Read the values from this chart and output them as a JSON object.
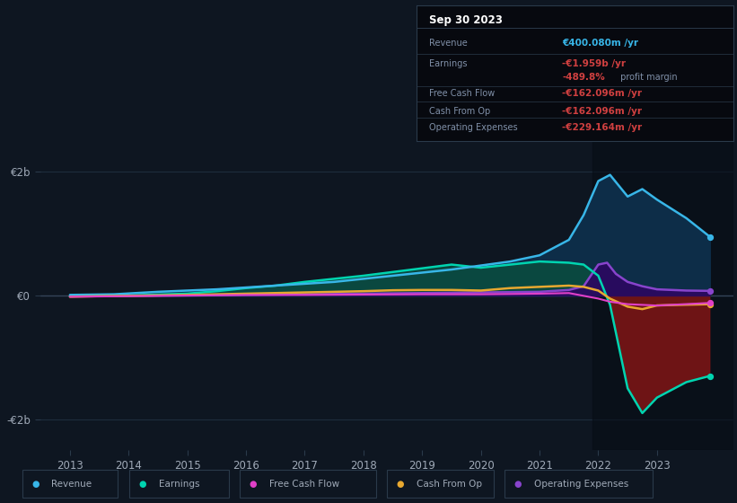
{
  "bg_color": "#0e1621",
  "plot_bg_color": "#0e1621",
  "grid_color": "#1e2d3d",
  "text_color": "#a0aab8",
  "ylim": [
    -2500000000.0,
    2500000000.0
  ],
  "yticks": [
    -2000000000.0,
    0,
    2000000000.0
  ],
  "ytick_labels": [
    "-€2b",
    "€0",
    "€2b"
  ],
  "xticks": [
    2013,
    2014,
    2015,
    2016,
    2017,
    2018,
    2019,
    2020,
    2021,
    2022,
    2023
  ],
  "legend_items": [
    {
      "label": "Revenue",
      "color": "#38b6e8"
    },
    {
      "label": "Earnings",
      "color": "#00d4b0"
    },
    {
      "label": "Free Cash Flow",
      "color": "#e040c8"
    },
    {
      "label": "Cash From Op",
      "color": "#e8a830"
    },
    {
      "label": "Operating Expenses",
      "color": "#8844cc"
    }
  ],
  "revenue_years": [
    2013,
    2013.75,
    2014.5,
    2015.5,
    2016.5,
    2017.5,
    2018.5,
    2019.5,
    2020.5,
    2021.0,
    2021.5,
    2021.75,
    2022.0,
    2022.2,
    2022.5,
    2022.75,
    2023.0,
    2023.5,
    2023.9
  ],
  "revenue_values": [
    0.01,
    0.02,
    0.06,
    0.1,
    0.16,
    0.22,
    0.32,
    0.42,
    0.55,
    0.65,
    0.9,
    1.3,
    1.85,
    1.95,
    1.6,
    1.72,
    1.55,
    1.25,
    0.95
  ],
  "earnings_years": [
    2013,
    2013.5,
    2014,
    2015,
    2015.5,
    2016,
    2016.5,
    2017,
    2017.5,
    2018,
    2018.5,
    2019,
    2019.5,
    2020,
    2020.5,
    2021.0,
    2021.5,
    2021.75,
    2022.0,
    2022.2,
    2022.5,
    2022.75,
    2023.0,
    2023.5,
    2023.9
  ],
  "earnings_values": [
    -0.01,
    -0.005,
    0.0,
    0.03,
    0.07,
    0.12,
    0.16,
    0.22,
    0.27,
    0.32,
    0.38,
    0.44,
    0.5,
    0.45,
    0.5,
    0.55,
    0.53,
    0.5,
    0.32,
    -0.15,
    -1.5,
    -1.9,
    -1.65,
    -1.4,
    -1.3
  ],
  "fcf_years": [
    2013,
    2014,
    2015,
    2016,
    2017,
    2018,
    2019,
    2020,
    2021,
    2021.5,
    2022.0,
    2022.2,
    2022.5,
    2023.0,
    2023.9
  ],
  "fcf_values": [
    -0.02,
    -0.01,
    0.0,
    0.01,
    0.01,
    0.015,
    0.02,
    0.02,
    0.03,
    0.04,
    -0.05,
    -0.1,
    -0.14,
    -0.162,
    -0.12
  ],
  "cop_years": [
    2013,
    2013.5,
    2014,
    2015,
    2016,
    2017,
    2018,
    2018.5,
    2019,
    2019.5,
    2020,
    2020.5,
    2021,
    2021.5,
    2021.75,
    2022.0,
    2022.2,
    2022.5,
    2022.75,
    2023.0,
    2023.9
  ],
  "cop_values": [
    -0.02,
    -0.01,
    -0.005,
    0.01,
    0.03,
    0.05,
    0.07,
    0.085,
    0.09,
    0.09,
    0.08,
    0.12,
    0.14,
    0.16,
    0.14,
    0.08,
    -0.05,
    -0.18,
    -0.22,
    -0.16,
    -0.14
  ],
  "opex_years": [
    2013,
    2014,
    2015,
    2016,
    2017,
    2018,
    2019,
    2020,
    2021,
    2021.5,
    2021.75,
    2022.0,
    2022.15,
    2022.3,
    2022.5,
    2022.75,
    2023.0,
    2023.5,
    2023.9
  ],
  "opex_values": [
    -0.01,
    -0.005,
    0.0,
    0.01,
    0.02,
    0.03,
    0.04,
    0.05,
    0.06,
    0.09,
    0.15,
    0.5,
    0.53,
    0.35,
    0.22,
    0.15,
    0.1,
    0.08,
    0.075
  ],
  "info_box": {
    "title": "Sep 30 2023",
    "rows": [
      {
        "label": "Revenue",
        "value": "€400.080m /yr",
        "value_color": "#38b6e8"
      },
      {
        "label": "Earnings",
        "value": "-€1.959b /yr",
        "value_color": "#d04040"
      },
      {
        "label": "",
        "value": "-489.8%",
        "value_color": "#d04040",
        "suffix": " profit margin"
      },
      {
        "label": "Free Cash Flow",
        "value": "-€162.096m /yr",
        "value_color": "#d04040"
      },
      {
        "label": "Cash From Op",
        "value": "-€162.096m /yr",
        "value_color": "#d04040"
      },
      {
        "label": "Operating Expenses",
        "value": "-€229.164m /yr",
        "value_color": "#d04040"
      }
    ]
  }
}
